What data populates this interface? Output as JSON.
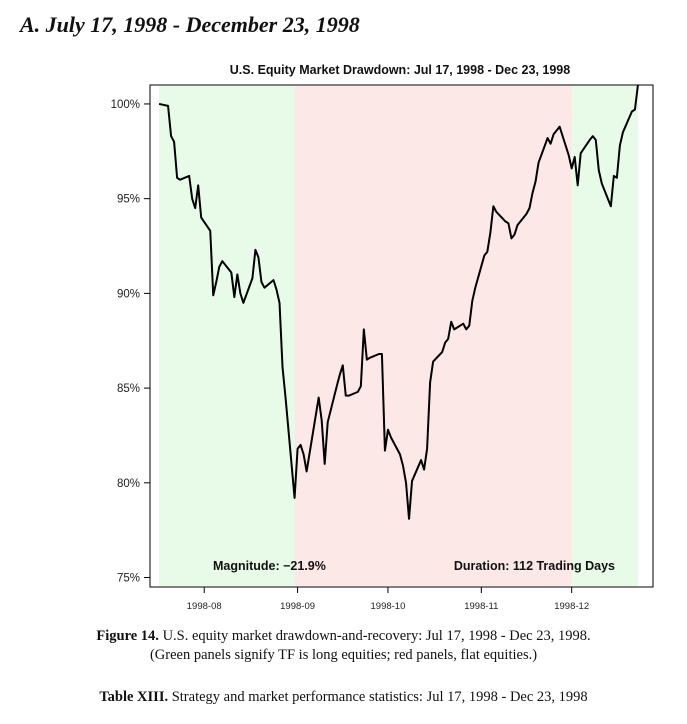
{
  "heading": "A. July 17, 1998 - December 23, 1998",
  "figure_caption": {
    "label": "Figure 14.",
    "text": "U.S. equity market drawdown-and-recovery:  Jul 17, 1998 - Dec 23, 1998.",
    "note": "(Green panels signify TF is long equities; red panels, flat equities.)"
  },
  "table_caption": {
    "label": "Table XIII.",
    "text": "Strategy and market performance statistics:  Jul 17, 1998 - Dec 23, 1998"
  },
  "colors": {
    "long_panel": "#e8fbe8",
    "flat_panel": "#fde8e8",
    "line": "#000000"
  },
  "chart_data": {
    "type": "line",
    "title": "U.S. Equity Market Drawdown:  Jul 17, 1998 - Dec 23, 1998",
    "xlabel": "",
    "ylabel": "",
    "ylim": [
      74.5,
      101
    ],
    "y_ticks": [
      100,
      95,
      90,
      85,
      80,
      75
    ],
    "y_tick_labels": [
      "100%",
      "95%",
      "90%",
      "85%",
      "80%",
      "75%"
    ],
    "xlim": [
      "1998-07-14",
      "1998-12-28"
    ],
    "x_ticks": [
      "1998-08-01",
      "1998-09-01",
      "1998-10-01",
      "1998-11-01",
      "1998-12-01"
    ],
    "x_tick_labels": [
      "1998-08",
      "1998-09",
      "1998-10",
      "1998-11",
      "1998-12"
    ],
    "panels": [
      {
        "from": "1998-07-17",
        "to": "1998-08-31",
        "state": "long"
      },
      {
        "from": "1998-08-31",
        "to": "1998-12-01",
        "state": "flat"
      },
      {
        "from": "1998-12-01",
        "to": "1998-12-23",
        "state": "long"
      }
    ],
    "annotations": {
      "magnitude": "Magnitude: −21.9%",
      "duration": "Duration: 112 Trading Days"
    },
    "series": [
      {
        "points": [
          [
            "1998-07-17",
            100.0
          ],
          [
            "1998-07-20",
            99.9
          ],
          [
            "1998-07-21",
            98.3
          ],
          [
            "1998-07-22",
            98.0
          ],
          [
            "1998-07-23",
            96.1
          ],
          [
            "1998-07-24",
            96.0
          ],
          [
            "1998-07-27",
            96.2
          ],
          [
            "1998-07-28",
            95.0
          ],
          [
            "1998-07-29",
            94.5
          ],
          [
            "1998-07-30",
            95.7
          ],
          [
            "1998-07-31",
            94.0
          ],
          [
            "1998-08-03",
            93.3
          ],
          [
            "1998-08-04",
            89.9
          ],
          [
            "1998-08-05",
            90.6
          ],
          [
            "1998-08-06",
            91.4
          ],
          [
            "1998-08-07",
            91.7
          ],
          [
            "1998-08-10",
            91.1
          ],
          [
            "1998-08-11",
            89.8
          ],
          [
            "1998-08-12",
            91.0
          ],
          [
            "1998-08-13",
            90.0
          ],
          [
            "1998-08-14",
            89.5
          ],
          [
            "1998-08-17",
            90.8
          ],
          [
            "1998-08-18",
            92.3
          ],
          [
            "1998-08-19",
            91.9
          ],
          [
            "1998-08-20",
            90.6
          ],
          [
            "1998-08-21",
            90.3
          ],
          [
            "1998-08-24",
            90.7
          ],
          [
            "1998-08-25",
            90.2
          ],
          [
            "1998-08-26",
            89.5
          ],
          [
            "1998-08-27",
            86.1
          ],
          [
            "1998-08-28",
            84.5
          ],
          [
            "1998-08-31",
            79.2
          ],
          [
            "1998-09-01",
            81.8
          ],
          [
            "1998-09-02",
            82.0
          ],
          [
            "1998-09-03",
            81.5
          ],
          [
            "1998-09-04",
            80.6
          ],
          [
            "1998-09-08",
            84.5
          ],
          [
            "1998-09-09",
            83.3
          ],
          [
            "1998-09-10",
            81.0
          ],
          [
            "1998-09-11",
            83.2
          ],
          [
            "1998-09-14",
            85.1
          ],
          [
            "1998-09-15",
            85.7
          ],
          [
            "1998-09-16",
            86.2
          ],
          [
            "1998-09-17",
            84.6
          ],
          [
            "1998-09-18",
            84.6
          ],
          [
            "1998-09-21",
            84.8
          ],
          [
            "1998-09-22",
            85.1
          ],
          [
            "1998-09-23",
            88.1
          ],
          [
            "1998-09-24",
            86.5
          ],
          [
            "1998-09-25",
            86.6
          ],
          [
            "1998-09-28",
            86.8
          ],
          [
            "1998-09-29",
            86.8
          ],
          [
            "1998-09-30",
            81.7
          ],
          [
            "1998-10-01",
            82.8
          ],
          [
            "1998-10-02",
            82.4
          ],
          [
            "1998-10-05",
            81.5
          ],
          [
            "1998-10-06",
            80.9
          ],
          [
            "1998-10-07",
            80.0
          ],
          [
            "1998-10-08",
            78.1
          ],
          [
            "1998-10-09",
            80.1
          ],
          [
            "1998-10-12",
            81.2
          ],
          [
            "1998-10-13",
            80.7
          ],
          [
            "1998-10-14",
            81.8
          ],
          [
            "1998-10-15",
            85.3
          ],
          [
            "1998-10-16",
            86.4
          ],
          [
            "1998-10-19",
            86.9
          ],
          [
            "1998-10-20",
            87.4
          ],
          [
            "1998-10-21",
            87.6
          ],
          [
            "1998-10-22",
            88.5
          ],
          [
            "1998-10-23",
            88.1
          ],
          [
            "1998-10-26",
            88.4
          ],
          [
            "1998-10-27",
            88.1
          ],
          [
            "1998-10-28",
            88.3
          ],
          [
            "1998-10-29",
            89.6
          ],
          [
            "1998-10-30",
            90.3
          ],
          [
            "1998-11-02",
            92.0
          ],
          [
            "1998-11-03",
            92.2
          ],
          [
            "1998-11-04",
            93.2
          ],
          [
            "1998-11-05",
            94.6
          ],
          [
            "1998-11-06",
            94.3
          ],
          [
            "1998-11-09",
            93.8
          ],
          [
            "1998-11-10",
            93.7
          ],
          [
            "1998-11-11",
            92.9
          ],
          [
            "1998-11-12",
            93.1
          ],
          [
            "1998-11-13",
            93.6
          ],
          [
            "1998-11-16",
            94.2
          ],
          [
            "1998-11-17",
            94.5
          ],
          [
            "1998-11-18",
            95.3
          ],
          [
            "1998-11-19",
            95.9
          ],
          [
            "1998-11-20",
            96.9
          ],
          [
            "1998-11-23",
            98.2
          ],
          [
            "1998-11-24",
            97.9
          ],
          [
            "1998-11-25",
            98.4
          ],
          [
            "1998-11-27",
            98.8
          ],
          [
            "1998-11-30",
            97.3
          ],
          [
            "1998-12-01",
            96.6
          ],
          [
            "1998-12-02",
            97.2
          ],
          [
            "1998-12-03",
            95.7
          ],
          [
            "1998-12-04",
            97.4
          ],
          [
            "1998-12-07",
            98.1
          ],
          [
            "1998-12-08",
            98.3
          ],
          [
            "1998-12-09",
            98.1
          ],
          [
            "1998-12-10",
            96.5
          ],
          [
            "1998-12-11",
            95.8
          ],
          [
            "1998-12-14",
            94.6
          ],
          [
            "1998-12-15",
            96.2
          ],
          [
            "1998-12-16",
            96.1
          ],
          [
            "1998-12-17",
            97.8
          ],
          [
            "1998-12-18",
            98.5
          ],
          [
            "1998-12-21",
            99.6
          ],
          [
            "1998-12-22",
            99.7
          ],
          [
            "1998-12-23",
            101.0
          ]
        ]
      }
    ]
  }
}
